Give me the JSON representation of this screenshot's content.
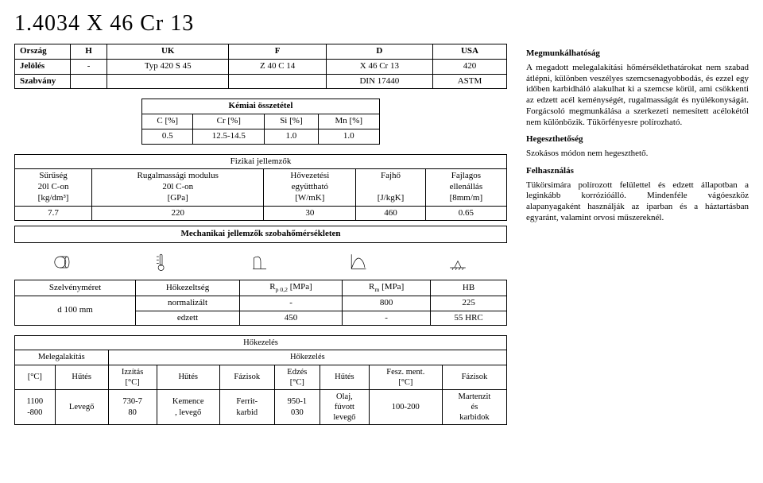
{
  "title": "1.4034    X 46 Cr 13",
  "countries": {
    "header": [
      "",
      "H",
      "UK",
      "F",
      "D",
      "USA"
    ],
    "rows": [
      [
        "Ország",
        "H",
        "UK",
        "F",
        "D",
        "USA"
      ],
      [
        "Jelölés",
        "-",
        "Typ 420 S 45",
        "Z 40 C 14",
        "X 46 Cr 13",
        "420"
      ],
      [
        "Szabvány",
        "",
        "",
        "",
        "DIN 17440",
        "ASTM"
      ]
    ]
  },
  "chem": {
    "title": "Kémiai összetétel",
    "header": [
      "C [%]",
      "Cr [%]",
      "Si [%]",
      "Mn [%]"
    ],
    "row": [
      "0.5",
      "12.5-14.5",
      "1.0",
      "1.0"
    ]
  },
  "phys": {
    "title": "Fizikai jellemzők",
    "header": [
      "Sűrűség\n20l C-on\n[kg/dm³]",
      "Rugalmassági modulus\n20l C-on\n[GPa]",
      "Hővezetési\negyüttható\n[W/mK]",
      "Fajhő\n\n[J/kgK]",
      "Fajlagos\nellenállás\n[8mm/m]"
    ],
    "row": [
      "7.7",
      "220",
      "30",
      "460",
      "0.65"
    ]
  },
  "mech_title": "Mechanikai jellemzők szobahőmérsékleten",
  "mech": {
    "header": [
      "Szelvényméret",
      "Hőkezeltség",
      "R_p0,2 [MPa]",
      "R_m [MPa]",
      "HB"
    ],
    "rows": [
      [
        "d  100 mm",
        "normalizált",
        "-",
        "800",
        "225"
      ],
      [
        "",
        "edzett",
        "450",
        "-",
        "55 HRC"
      ]
    ]
  },
  "heat": {
    "title": "Hőkezelés",
    "sub1": "Melegalakítás",
    "sub2": "Hőkezelés",
    "header": [
      "[°C]",
      "Hűtés",
      "Izzítás\n[°C]",
      "Hűtés",
      "Fázisok",
      "Edzés\n[°C]",
      "Hűtés",
      "Fesz. ment.\n[°C]",
      "Fázisok"
    ],
    "row": [
      "1100\n-800",
      "Levegő",
      "730-7\n80",
      "Kemence\n, levegő",
      "Ferrit-\nkarbid",
      "950-1\n030",
      "Olaj,\nfúvott\nlevegő",
      "100-200",
      "Martenzit\nés\nkarbidok"
    ]
  },
  "right": {
    "h1": "Megmunkálhatóság",
    "p1": "A megadott melegalakítási hőmérséklethatárokat nem szabad átlépni, különben veszélyes szemcsenagyobbodás, és ezzel egy időben karbidháló alakulhat ki a szemcse körül, ami csökkenti az edzett acél keménységét, rugalmasságát és nyúlékonyságát. Forgácsoló megmunkálása a szerkezeti nemesített acélokétól nem különbözik. Tükörfényesre polírozható.",
    "h2": "Hegeszthetőség",
    "p2": "Szokásos módon nem hegeszthető.",
    "h3": "Felhasználás",
    "p3": "Tükörsimára polírozott felülettel és edzett állapotban a leginkább korrózióálló. Mindenféle vágóeszköz alapanyagaként használják az iparban és a háztartásban egyaránt, valamint orvosi műszereknél."
  }
}
